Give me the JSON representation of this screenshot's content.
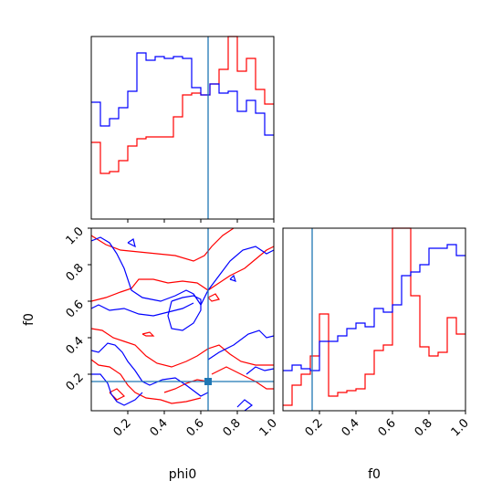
{
  "chart_data": {
    "type": "corner",
    "parameters": [
      "phi0",
      "f0"
    ],
    "colors": {
      "series_a": "#0000ff",
      "series_b": "#ff0000",
      "truth": "#1f77b4"
    },
    "truth": {
      "phi0": 0.64,
      "f0": 0.16
    },
    "axes": {
      "phi0": {
        "label": "phi0",
        "range": [
          0.0,
          1.0
        ],
        "tick_values": [
          0.2,
          0.4,
          0.6,
          0.8,
          1.0
        ],
        "tick_labels": [
          "0.2",
          "0.4",
          "0.6",
          "0.8",
          "1.0"
        ]
      },
      "f0": {
        "label": "f0",
        "range": [
          0.0,
          1.0
        ],
        "tick_values": [
          0.2,
          0.4,
          0.6,
          0.8,
          1.0
        ],
        "tick_labels": [
          "0.2",
          "0.4",
          "0.6",
          "0.8",
          "1.0"
        ]
      }
    },
    "hist_phi0": {
      "bin_edges": [
        0.0,
        0.05,
        0.1,
        0.15,
        0.2,
        0.25,
        0.3,
        0.35,
        0.4,
        0.45,
        0.5,
        0.55,
        0.6,
        0.65,
        0.7,
        0.75,
        0.8,
        0.85,
        0.9,
        0.95,
        1.0
      ],
      "blue": [
        0.64,
        0.51,
        0.55,
        0.61,
        0.7,
        0.91,
        0.87,
        0.89,
        0.88,
        0.89,
        0.88,
        0.72,
        0.68,
        0.74,
        0.69,
        0.7,
        0.59,
        0.65,
        0.58,
        0.46
      ],
      "red": [
        0.42,
        0.25,
        0.26,
        0.32,
        0.4,
        0.44,
        0.45,
        0.45,
        0.45,
        0.56,
        0.68,
        0.69,
        0.68,
        0.74,
        0.82,
        1.0,
        0.81,
        0.88,
        0.71,
        0.63
      ]
    },
    "hist_f0": {
      "bin_edges": [
        0.0,
        0.05,
        0.1,
        0.15,
        0.2,
        0.25,
        0.3,
        0.35,
        0.4,
        0.45,
        0.5,
        0.55,
        0.6,
        0.65,
        0.7,
        0.75,
        0.8,
        0.85,
        0.9,
        0.95,
        1.0
      ],
      "blue": [
        0.22,
        0.25,
        0.23,
        0.22,
        0.38,
        0.38,
        0.41,
        0.45,
        0.48,
        0.46,
        0.56,
        0.54,
        0.58,
        0.74,
        0.76,
        0.8,
        0.89,
        0.89,
        0.91,
        0.85
      ],
      "red": [
        0.03,
        0.14,
        0.2,
        0.3,
        0.53,
        0.08,
        0.1,
        0.11,
        0.12,
        0.2,
        0.33,
        0.36,
        1.0,
        1.0,
        0.63,
        0.35,
        0.3,
        0.32,
        0.51,
        0.42
      ]
    },
    "contour_2d": {
      "blue": [
        [
          [
            0.0,
            0.93
          ],
          [
            0.05,
            0.95
          ],
          [
            0.1,
            0.92
          ],
          [
            0.14,
            0.86
          ],
          [
            0.18,
            0.78
          ],
          [
            0.22,
            0.66
          ],
          [
            0.28,
            0.62
          ],
          [
            0.38,
            0.6
          ],
          [
            0.46,
            0.63
          ],
          [
            0.52,
            0.66
          ],
          [
            0.56,
            0.64
          ],
          [
            0.6,
            0.58
          ],
          [
            0.64,
            0.66
          ],
          [
            0.7,
            0.74
          ],
          [
            0.76,
            0.82
          ],
          [
            0.83,
            0.88
          ],
          [
            0.9,
            0.9
          ],
          [
            0.96,
            0.86
          ],
          [
            1.0,
            0.88
          ]
        ],
        [
          [
            0.0,
            0.56
          ],
          [
            0.04,
            0.58
          ],
          [
            0.1,
            0.55
          ],
          [
            0.18,
            0.56
          ],
          [
            0.26,
            0.53
          ],
          [
            0.34,
            0.52
          ],
          [
            0.42,
            0.54
          ],
          [
            0.5,
            0.56
          ],
          [
            0.56,
            0.59
          ]
        ],
        [
          [
            0.44,
            0.6
          ],
          [
            0.42,
            0.52
          ],
          [
            0.44,
            0.45
          ],
          [
            0.5,
            0.44
          ],
          [
            0.56,
            0.48
          ],
          [
            0.6,
            0.55
          ],
          [
            0.6,
            0.61
          ],
          [
            0.56,
            0.63
          ],
          [
            0.5,
            0.62
          ],
          [
            0.44,
            0.6
          ]
        ],
        [
          [
            0.0,
            0.33
          ],
          [
            0.04,
            0.32
          ],
          [
            0.09,
            0.37
          ],
          [
            0.13,
            0.36
          ],
          [
            0.17,
            0.32
          ],
          [
            0.2,
            0.27
          ],
          [
            0.24,
            0.22
          ],
          [
            0.28,
            0.16
          ],
          [
            0.32,
            0.14
          ],
          [
            0.39,
            0.17
          ],
          [
            0.46,
            0.18
          ],
          [
            0.52,
            0.14
          ],
          [
            0.56,
            0.11
          ],
          [
            0.6,
            0.08
          ],
          [
            0.64,
            0.1
          ]
        ],
        [
          [
            0.0,
            0.2
          ],
          [
            0.05,
            0.2
          ],
          [
            0.09,
            0.15
          ],
          [
            0.11,
            0.09
          ],
          [
            0.14,
            0.05
          ],
          [
            0.18,
            0.03
          ],
          [
            0.24,
            0.06
          ],
          [
            0.28,
            0.1
          ]
        ],
        [
          [
            0.64,
            0.28
          ],
          [
            0.7,
            0.32
          ],
          [
            0.78,
            0.36
          ],
          [
            0.86,
            0.42
          ],
          [
            0.92,
            0.44
          ],
          [
            0.96,
            0.4
          ],
          [
            1.0,
            0.41
          ]
        ],
        [
          [
            0.76,
            0.72
          ],
          [
            0.78,
            0.74
          ],
          [
            0.79,
            0.71
          ],
          [
            0.76,
            0.72
          ]
        ],
        [
          [
            0.85,
            0.2
          ],
          [
            0.9,
            0.24
          ],
          [
            0.95,
            0.22
          ],
          [
            1.0,
            0.23
          ]
        ],
        [
          [
            0.8,
            0.02
          ],
          [
            0.84,
            0.06
          ],
          [
            0.88,
            0.03
          ],
          [
            0.84,
            0.0
          ]
        ],
        [
          [
            0.2,
            0.92
          ],
          [
            0.23,
            0.94
          ],
          [
            0.24,
            0.9
          ],
          [
            0.2,
            0.92
          ]
        ]
      ],
      "red": [
        [
          [
            0.0,
            0.96
          ],
          [
            0.08,
            0.91
          ],
          [
            0.16,
            0.88
          ],
          [
            0.26,
            0.87
          ],
          [
            0.36,
            0.86
          ],
          [
            0.46,
            0.85
          ],
          [
            0.56,
            0.82
          ],
          [
            0.62,
            0.85
          ],
          [
            0.66,
            0.9
          ],
          [
            0.72,
            0.96
          ],
          [
            0.78,
            1.0
          ]
        ],
        [
          [
            0.0,
            0.6
          ],
          [
            0.08,
            0.62
          ],
          [
            0.16,
            0.65
          ],
          [
            0.22,
            0.67
          ],
          [
            0.26,
            0.72
          ],
          [
            0.34,
            0.72
          ],
          [
            0.42,
            0.7
          ],
          [
            0.5,
            0.71
          ],
          [
            0.58,
            0.7
          ],
          [
            0.64,
            0.66
          ],
          [
            0.7,
            0.7
          ],
          [
            0.76,
            0.74
          ],
          [
            0.84,
            0.78
          ],
          [
            0.9,
            0.83
          ],
          [
            0.96,
            0.88
          ],
          [
            1.0,
            0.9
          ]
        ],
        [
          [
            0.0,
            0.45
          ],
          [
            0.06,
            0.44
          ],
          [
            0.12,
            0.4
          ],
          [
            0.18,
            0.38
          ],
          [
            0.24,
            0.36
          ],
          [
            0.3,
            0.3
          ],
          [
            0.36,
            0.26
          ],
          [
            0.44,
            0.24
          ],
          [
            0.52,
            0.27
          ],
          [
            0.58,
            0.3
          ],
          [
            0.64,
            0.34
          ],
          [
            0.7,
            0.36
          ],
          [
            0.76,
            0.31
          ],
          [
            0.82,
            0.27
          ],
          [
            0.9,
            0.25
          ],
          [
            1.0,
            0.25
          ]
        ],
        [
          [
            0.0,
            0.28
          ],
          [
            0.04,
            0.25
          ],
          [
            0.1,
            0.24
          ],
          [
            0.16,
            0.2
          ],
          [
            0.2,
            0.14
          ],
          [
            0.24,
            0.1
          ],
          [
            0.3,
            0.07
          ],
          [
            0.38,
            0.06
          ],
          [
            0.44,
            0.04
          ],
          [
            0.52,
            0.05
          ],
          [
            0.6,
            0.07
          ]
        ],
        [
          [
            0.4,
            0.1
          ],
          [
            0.46,
            0.12
          ],
          [
            0.52,
            0.15
          ],
          [
            0.58,
            0.17
          ],
          [
            0.64,
            0.16
          ]
        ],
        [
          [
            0.66,
            0.2
          ],
          [
            0.74,
            0.24
          ],
          [
            0.82,
            0.2
          ],
          [
            0.9,
            0.16
          ],
          [
            0.96,
            0.12
          ],
          [
            1.0,
            0.12
          ]
        ],
        [
          [
            0.64,
            0.62
          ],
          [
            0.68,
            0.64
          ],
          [
            0.7,
            0.61
          ],
          [
            0.66,
            0.6
          ],
          [
            0.64,
            0.62
          ]
        ],
        [
          [
            0.28,
            0.42
          ],
          [
            0.32,
            0.43
          ],
          [
            0.34,
            0.41
          ],
          [
            0.3,
            0.41
          ],
          [
            0.28,
            0.42
          ]
        ],
        [
          [
            0.1,
            0.1
          ],
          [
            0.14,
            0.12
          ],
          [
            0.18,
            0.08
          ],
          [
            0.14,
            0.06
          ],
          [
            0.1,
            0.1
          ]
        ]
      ]
    }
  }
}
